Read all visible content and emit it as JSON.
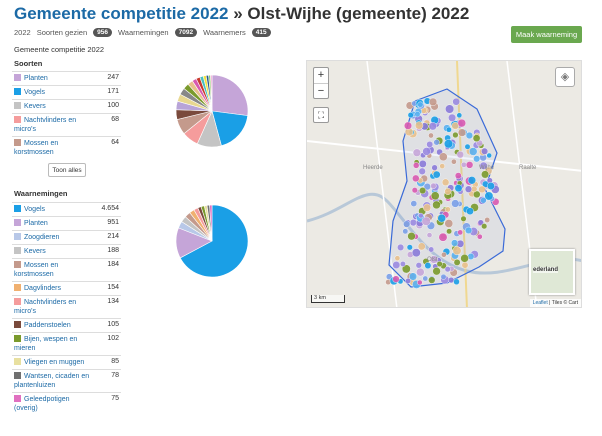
{
  "header": {
    "title_link": "Gemeente competitie 2022",
    "separator": "»",
    "title_place": "Olst-Wijhe (gemeente) 2022",
    "year": "2022",
    "soorten_label": "Soorten gezien",
    "soorten_count": "956",
    "waarnemingen_label": "Waarnemingen",
    "waarnemingen_count": "7092",
    "waarnemers_label": "Waarnemers",
    "waarnemers_count": "415",
    "add_button": "Maak waarneming"
  },
  "competition_label": "Gemeente competitie 2022",
  "soorten": {
    "heading": "Soorten",
    "more_button": "Toon alles",
    "items": [
      {
        "label": "Planten",
        "count": "247",
        "value": 247,
        "color": "#c5a5d8"
      },
      {
        "label": "Vogels",
        "count": "171",
        "value": 171,
        "color": "#1a9fe6"
      },
      {
        "label": "Kevers",
        "count": "100",
        "value": 100,
        "color": "#c4c4c4"
      },
      {
        "label": "Nachtvlinders en micro's",
        "count": "68",
        "value": 68,
        "color": "#f59c9c"
      },
      {
        "label": "Mossen en korstmossen",
        "count": "64",
        "value": 64,
        "color": "#c49a8c"
      }
    ],
    "pie_extra": [
      {
        "value": 40,
        "color": "#7a4a3c"
      },
      {
        "value": 35,
        "color": "#b8a4d8"
      },
      {
        "value": 30,
        "color": "#e8d890"
      },
      {
        "value": 28,
        "color": "#888888"
      },
      {
        "value": 24,
        "color": "#7a9a2c"
      },
      {
        "value": 22,
        "color": "#e8c08c"
      },
      {
        "value": 18,
        "color": "#d85ab0"
      },
      {
        "value": 16,
        "color": "#c83a2c"
      },
      {
        "value": 14,
        "color": "#4ac0c0"
      },
      {
        "value": 12,
        "color": "#f4e040"
      },
      {
        "value": 10,
        "color": "#2a5a8c"
      },
      {
        "value": 8,
        "color": "#90c870"
      },
      {
        "value": 6,
        "color": "#f0a0d0"
      }
    ]
  },
  "waarnemingen": {
    "heading": "Waarnemingen",
    "items": [
      {
        "label": "Vogels",
        "count": "4.654",
        "value": 4654,
        "color": "#1a9fe6"
      },
      {
        "label": "Planten",
        "count": "951",
        "value": 951,
        "color": "#c5a5d8"
      },
      {
        "label": "Zoogdieren",
        "count": "214",
        "value": 214,
        "color": "#b8c8e8"
      },
      {
        "label": "Kevers",
        "count": "188",
        "value": 188,
        "color": "#c4c4c4"
      },
      {
        "label": "Mossen en korstmossen",
        "count": "184",
        "value": 184,
        "color": "#c49a8c"
      },
      {
        "label": "Dagvlinders",
        "count": "154",
        "value": 154,
        "color": "#f0b070"
      },
      {
        "label": "Nachtvlinders en micro's",
        "count": "134",
        "value": 134,
        "color": "#f59c9c"
      },
      {
        "label": "Paddenstoelen",
        "count": "105",
        "value": 105,
        "color": "#7a4a3c"
      },
      {
        "label": "Bijen, wespen en mieren",
        "count": "102",
        "value": 102,
        "color": "#7a9a2c"
      },
      {
        "label": "Vliegen en muggen",
        "count": "85",
        "value": 85,
        "color": "#e8e0a0"
      },
      {
        "label": "Wantsen, cicaden en plantenluizen",
        "count": "78",
        "value": 78,
        "color": "#707070"
      },
      {
        "label": "Geleedpotigen (overig)",
        "count": "75",
        "value": 75,
        "color": "#e070c0"
      }
    ]
  },
  "map": {
    "zoom_in": "+",
    "zoom_out": "−",
    "scale": "3 km",
    "minimap_label": "ederland",
    "attribution_link": "Leaflet",
    "attribution_text": "| Tiles © Cart",
    "place_raalte": "Raalte",
    "place_wijhe": "Wijhe",
    "place_olst": "Olst",
    "place_heerde": "Heerde"
  }
}
